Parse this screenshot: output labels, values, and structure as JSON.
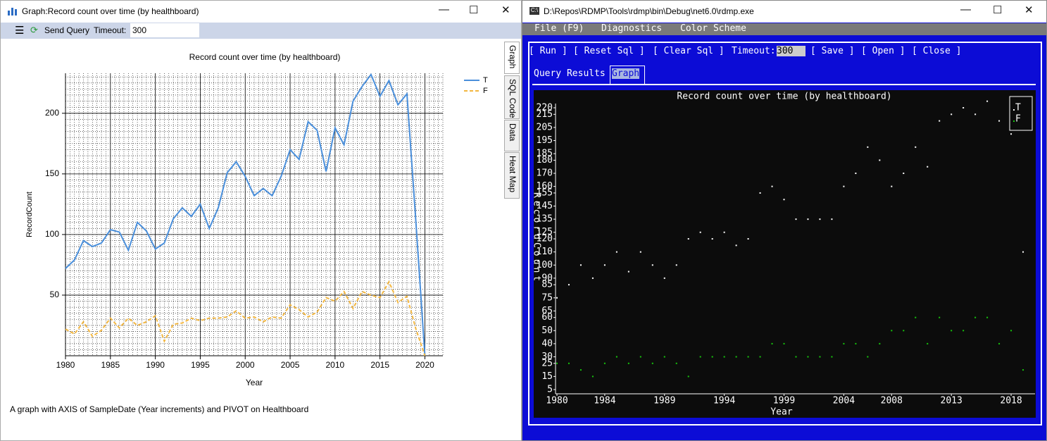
{
  "left_window": {
    "title": "Graph:Record count over time (by healthboard)",
    "toolbar": {
      "send_query": "Send Query",
      "timeout_label": "Timeout:",
      "timeout_value": "300"
    },
    "tabs": [
      "Graph",
      "SQL Code",
      "Data",
      "Heat Map"
    ],
    "description": "A graph with AXIS of SampleDate (Year increments) and PIVOT on Healthboard"
  },
  "right_window": {
    "title": "D:\\Repos\\RDMP\\Tools\\rdmp\\bin\\Debug\\net6.0\\rdmp.exe",
    "menu": [
      "File (F9)",
      "Diagnostics",
      "Color Scheme"
    ],
    "buttons": [
      "[ Run ]",
      "[ Reset Sql ]",
      "[ Clear Sql ]"
    ],
    "timeout_label": "Timeout:",
    "timeout_value": "300",
    "buttons2": [
      "[ Save ]",
      "[ Open ]",
      "[ Close ]"
    ],
    "tabs": [
      "Query Results",
      "Graph"
    ]
  },
  "chart_data": [
    {
      "type": "line",
      "title": "Record count over time (by healthboard)",
      "xlabel": "Year",
      "ylabel": "RecordCount",
      "x": [
        1980,
        1981,
        1982,
        1983,
        1984,
        1985,
        1986,
        1987,
        1988,
        1989,
        1990,
        1991,
        1992,
        1993,
        1994,
        1995,
        1996,
        1997,
        1998,
        1999,
        2000,
        2001,
        2002,
        2003,
        2004,
        2005,
        2006,
        2007,
        2008,
        2009,
        2010,
        2011,
        2012,
        2013,
        2014,
        2015,
        2016,
        2017,
        2018,
        2019,
        2020
      ],
      "series": [
        {
          "name": "T",
          "color": "#4a8fdb",
          "dash": false,
          "values": [
            72,
            79,
            95,
            90,
            93,
            104,
            102,
            87,
            110,
            103,
            88,
            93,
            113,
            122,
            115,
            125,
            105,
            122,
            151,
            160,
            148,
            132,
            138,
            132,
            148,
            170,
            162,
            193,
            186,
            152,
            188,
            174,
            210,
            222,
            232,
            214,
            227,
            207,
            216,
            110,
            0
          ]
        },
        {
          "name": "F",
          "color": "#f2b640",
          "dash": true,
          "values": [
            22,
            18,
            28,
            16,
            21,
            31,
            23,
            31,
            25,
            28,
            33,
            12,
            26,
            27,
            31,
            29,
            31,
            31,
            32,
            37,
            31,
            32,
            28,
            32,
            31,
            42,
            38,
            32,
            36,
            48,
            45,
            53,
            39,
            53,
            50,
            48,
            61,
            44,
            49,
            22,
            0
          ]
        }
      ],
      "xlim": [
        1980,
        2022
      ],
      "ylim": [
        0,
        233
      ],
      "xticks": [
        1980,
        1985,
        1990,
        1995,
        2000,
        2005,
        2010,
        2015,
        2020
      ],
      "yticks": [
        50,
        100,
        150,
        200
      ],
      "grid": true,
      "minor_grid": true,
      "legend": "right"
    },
    {
      "type": "scatter",
      "title": "Record count over time (by healthboard)",
      "xlabel": "Year",
      "ylabel": "RecordCount",
      "x": [
        1980,
        1981,
        1982,
        1983,
        1984,
        1985,
        1986,
        1987,
        1988,
        1989,
        1990,
        1991,
        1992,
        1993,
        1994,
        1995,
        1996,
        1997,
        1998,
        1999,
        2000,
        2001,
        2002,
        2003,
        2004,
        2005,
        2006,
        2007,
        2008,
        2009,
        2010,
        2011,
        2012,
        2013,
        2014,
        2015,
        2016,
        2017,
        2018,
        2019
      ],
      "series": [
        {
          "name": "T",
          "color": "#ffffff",
          "values": [
            75,
            85,
            100,
            90,
            100,
            110,
            95,
            110,
            100,
            90,
            100,
            120,
            125,
            120,
            125,
            115,
            120,
            155,
            160,
            150,
            135,
            135,
            135,
            135,
            160,
            170,
            190,
            180,
            160,
            170,
            190,
            175,
            210,
            215,
            220,
            215,
            225,
            210,
            200,
            110
          ]
        },
        {
          "name": "F",
          "color": "#16c60c",
          "values": [
            25,
            25,
            20,
            15,
            25,
            30,
            25,
            30,
            25,
            30,
            25,
            15,
            30,
            30,
            30,
            30,
            30,
            30,
            40,
            40,
            30,
            30,
            30,
            30,
            40,
            40,
            30,
            40,
            50,
            50,
            60,
            40,
            60,
            50,
            50,
            60,
            60,
            40,
            50,
            20
          ]
        }
      ],
      "xlim": [
        1980,
        2020
      ],
      "ylim": [
        5,
        220
      ],
      "xticks": [
        1980,
        1984,
        1989,
        1994,
        1999,
        2004,
        2008,
        2013,
        2018
      ],
      "yticks": [
        5,
        15,
        25,
        30,
        40,
        50,
        60,
        65,
        75,
        85,
        90,
        100,
        110,
        120,
        125,
        135,
        145,
        155,
        160,
        170,
        180,
        185,
        195,
        205,
        215,
        220
      ],
      "legend": "upper right"
    }
  ]
}
